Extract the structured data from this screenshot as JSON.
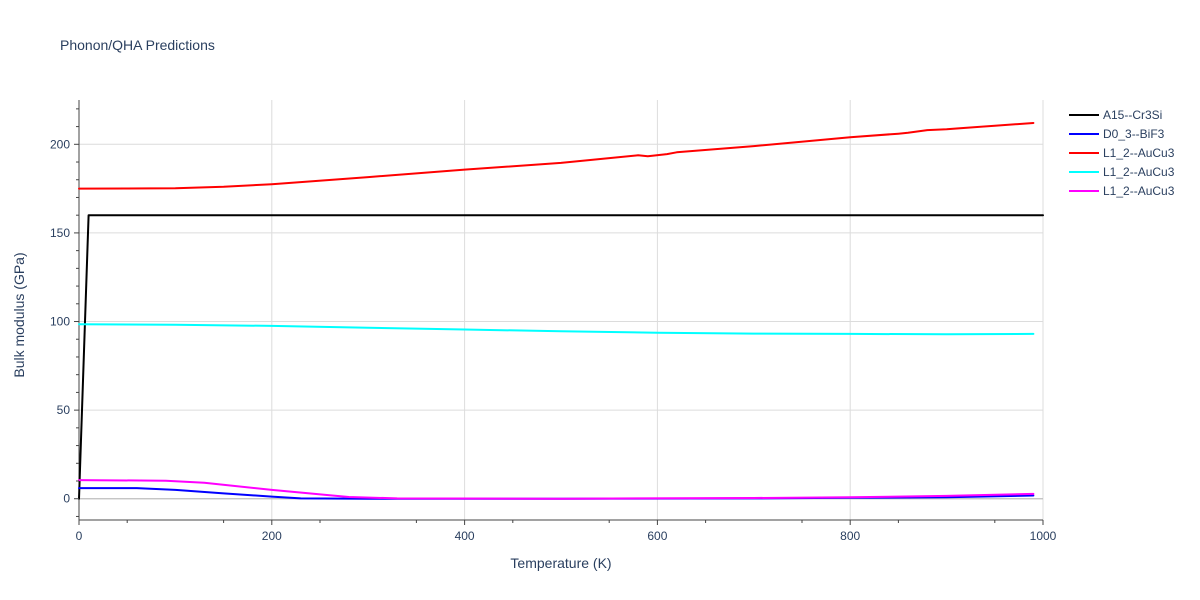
{
  "chart_data": {
    "type": "line",
    "title": "Phonon/QHA Predictions",
    "xlabel": "Temperature (K)",
    "ylabel": "Bulk modulus (GPa)",
    "xlim": [
      0,
      1000
    ],
    "ylim": [
      -12,
      225
    ],
    "x_ticks": [
      0,
      200,
      400,
      600,
      800,
      1000
    ],
    "x_tick_labels": [
      "0",
      "200",
      "400",
      "600",
      "800",
      "1000"
    ],
    "y_ticks": [
      0,
      50,
      100,
      150,
      200
    ],
    "y_tick_labels": [
      "0",
      "50",
      "100",
      "150",
      "200"
    ],
    "grid": true,
    "legend_position": "top-right",
    "series": [
      {
        "name": "A15--Cr3Si",
        "color": "#000000",
        "points": [
          [
            0,
            0
          ],
          [
            10,
            160
          ],
          [
            1000,
            160
          ]
        ]
      },
      {
        "name": "D0_3--BiF3",
        "color": "#0000ff",
        "points": [
          [
            0,
            6
          ],
          [
            60,
            6
          ],
          [
            80,
            5.5
          ],
          [
            100,
            5
          ],
          [
            150,
            3
          ],
          [
            200,
            1.2
          ],
          [
            230,
            0.2
          ],
          [
            300,
            0
          ],
          [
            500,
            0
          ],
          [
            700,
            0.2
          ],
          [
            800,
            0.5
          ],
          [
            900,
            0.8
          ],
          [
            990,
            1.8
          ]
        ]
      },
      {
        "name": "L1_2--AuCu3",
        "color": "#ff0000",
        "points": [
          [
            0,
            175
          ],
          [
            100,
            175.2
          ],
          [
            150,
            176
          ],
          [
            200,
            177.5
          ],
          [
            300,
            181.5
          ],
          [
            400,
            185.7
          ],
          [
            500,
            189.5
          ],
          [
            580,
            193.8
          ],
          [
            590,
            193.3
          ],
          [
            610,
            194.5
          ],
          [
            620,
            195.5
          ],
          [
            700,
            199
          ],
          [
            800,
            204
          ],
          [
            850,
            206
          ],
          [
            860,
            206.5
          ],
          [
            880,
            208
          ],
          [
            900,
            208.5
          ],
          [
            950,
            210.5
          ],
          [
            990,
            212
          ]
        ]
      },
      {
        "name": "L1_2--AuCu3",
        "color": "#00ffff",
        "points": [
          [
            0,
            98.5
          ],
          [
            100,
            98.2
          ],
          [
            200,
            97.5
          ],
          [
            300,
            96.5
          ],
          [
            400,
            95.5
          ],
          [
            500,
            94.5
          ],
          [
            600,
            93.7
          ],
          [
            700,
            93.2
          ],
          [
            800,
            93
          ],
          [
            900,
            92.8
          ],
          [
            990,
            93
          ]
        ]
      },
      {
        "name": "L1_2--AuCu3",
        "color": "#ff00ff",
        "points": [
          [
            0,
            10.5
          ],
          [
            90,
            10.2
          ],
          [
            130,
            9
          ],
          [
            200,
            5
          ],
          [
            260,
            2
          ],
          [
            280,
            1
          ],
          [
            330,
            0.2
          ],
          [
            500,
            0
          ],
          [
            700,
            0.4
          ],
          [
            800,
            0.8
          ],
          [
            900,
            1.6
          ],
          [
            990,
            2.7
          ]
        ]
      }
    ]
  }
}
